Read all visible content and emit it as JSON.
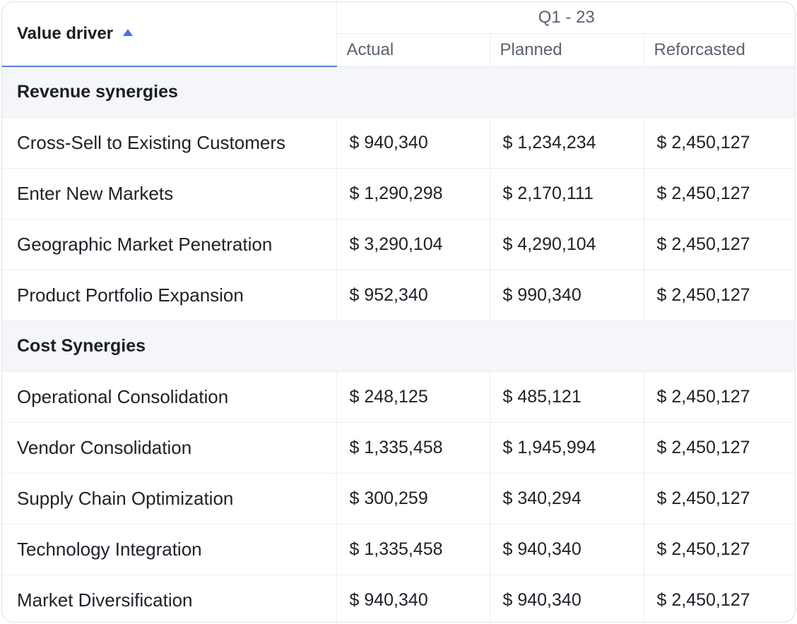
{
  "table": {
    "header": {
      "value_driver_label": "Value driver",
      "sort_direction": "ascending",
      "period_label": "Q1 - 23",
      "columns": [
        "Actual",
        "Planned",
        "Reforcasted"
      ]
    },
    "sections": [
      {
        "title": "Revenue synergies",
        "rows": [
          {
            "driver": "Cross-Sell to Existing Customers",
            "actual": "$ 940,340",
            "planned": "$ 1,234,234",
            "reforecasted": "$ 2,450,127"
          },
          {
            "driver": "Enter New Markets",
            "actual": "$ 1,290,298",
            "planned": "$ 2,170,111",
            "reforecasted": "$ 2,450,127"
          },
          {
            "driver": "Geographic Market Penetration",
            "actual": "$ 3,290,104",
            "planned": "$ 4,290,104",
            "reforecasted": "$ 2,450,127"
          },
          {
            "driver": "Product Portfolio Expansion",
            "actual": "$ 952,340",
            "planned": "$ 990,340",
            "reforecasted": "$ 2,450,127"
          }
        ]
      },
      {
        "title": "Cost Synergies",
        "rows": [
          {
            "driver": "Operational Consolidation",
            "actual": "$ 248,125",
            "planned": "$ 485,121",
            "reforecasted": "$ 2,450,127"
          },
          {
            "driver": "Vendor Consolidation",
            "actual": "$ 1,335,458",
            "planned": "$ 1,945,994",
            "reforecasted": "$ 2,450,127"
          },
          {
            "driver": "Supply Chain Optimization",
            "actual": "$ 300,259",
            "planned": "$ 340,294",
            "reforecasted": "$ 2,450,127"
          },
          {
            "driver": "Technology Integration",
            "actual": "$ 1,335,458",
            "planned": "$ 940,340",
            "reforecasted": "$ 2,450,127"
          },
          {
            "driver": "Market Diversification",
            "actual": "$ 940,340",
            "planned": "$ 940,340",
            "reforecasted": "$ 2,450,127"
          }
        ]
      }
    ]
  },
  "colors": {
    "accent": "#4a6fe0",
    "section_background": "#f4f6f9",
    "text": "#1e2128",
    "muted_text": "#5a6170",
    "border": "#eceef2"
  }
}
